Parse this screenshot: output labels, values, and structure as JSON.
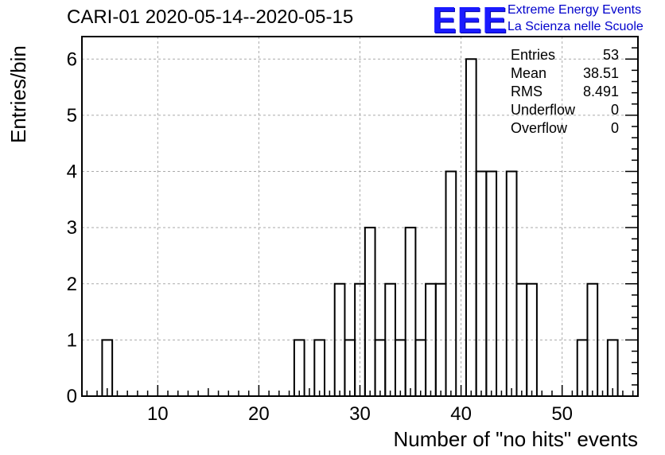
{
  "header": {
    "title": "CARI-01 2020-05-14--2020-05-15",
    "logo_text": "EEE",
    "logo_line1": "Extreme Energy Events",
    "logo_line2": "La Scienza nelle Scuole"
  },
  "stats": [
    {
      "label": "Entries",
      "value": "53"
    },
    {
      "label": "Mean",
      "value": "38.51"
    },
    {
      "label": "RMS",
      "value": "8.491"
    },
    {
      "label": "Underflow",
      "value": "0"
    },
    {
      "label": "Overflow",
      "value": "0"
    }
  ],
  "colors": {
    "line": "#000000",
    "grid": "#aaaaaa",
    "logo": "#1a1aff",
    "logo_text": "#0000cc"
  },
  "chart_data": {
    "type": "bar",
    "title": "CARI-01 2020-05-14--2020-05-15",
    "xlabel": "Number of \"no hits\" events",
    "ylabel": "Entries/bin",
    "xlim": [
      2.5,
      57.5
    ],
    "ylim": [
      0,
      6.4
    ],
    "bin_width": 1,
    "grid": true,
    "xticks": [
      10,
      20,
      30,
      40,
      50
    ],
    "yticks": [
      0,
      1,
      2,
      3,
      4,
      5,
      6
    ],
    "bins": [
      {
        "x": 5,
        "count": 1
      },
      {
        "x": 24,
        "count": 1
      },
      {
        "x": 26,
        "count": 1
      },
      {
        "x": 28,
        "count": 2
      },
      {
        "x": 29,
        "count": 1
      },
      {
        "x": 30,
        "count": 2
      },
      {
        "x": 31,
        "count": 3
      },
      {
        "x": 32,
        "count": 1
      },
      {
        "x": 33,
        "count": 2
      },
      {
        "x": 34,
        "count": 1
      },
      {
        "x": 35,
        "count": 3
      },
      {
        "x": 36,
        "count": 1
      },
      {
        "x": 37,
        "count": 2
      },
      {
        "x": 38,
        "count": 2
      },
      {
        "x": 39,
        "count": 4
      },
      {
        "x": 41,
        "count": 6
      },
      {
        "x": 42,
        "count": 4
      },
      {
        "x": 43,
        "count": 4
      },
      {
        "x": 45,
        "count": 4
      },
      {
        "x": 46,
        "count": 2
      },
      {
        "x": 47,
        "count": 2
      },
      {
        "x": 52,
        "count": 1
      },
      {
        "x": 53,
        "count": 2
      },
      {
        "x": 55,
        "count": 1
      }
    ]
  }
}
